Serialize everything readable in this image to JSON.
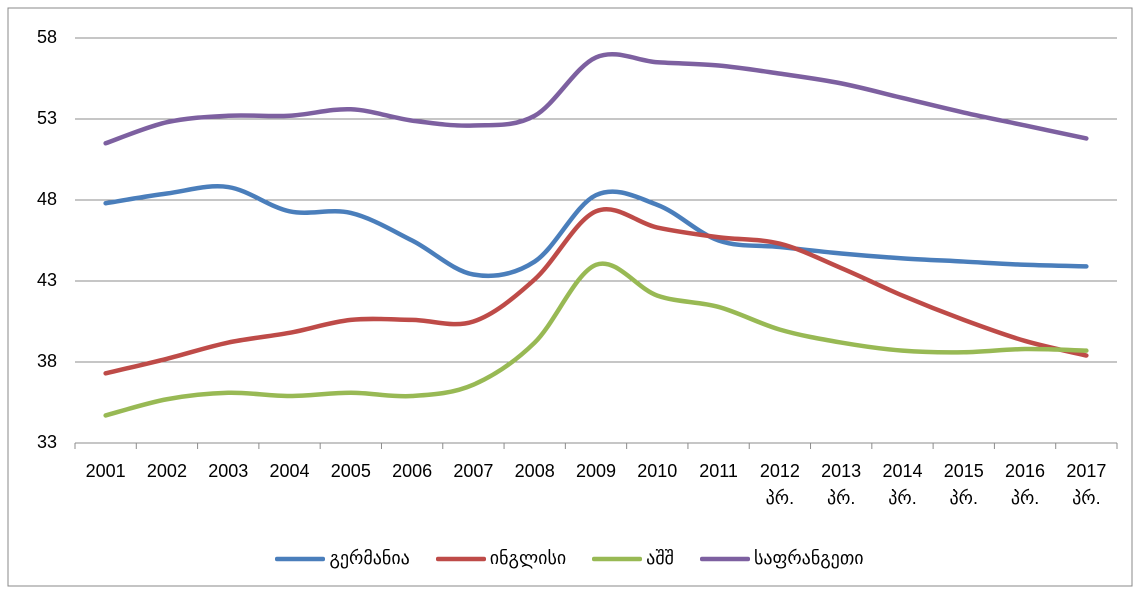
{
  "chart_data": {
    "type": "line",
    "categories": [
      "2001",
      "2002",
      "2003",
      "2004",
      "2005",
      "2006",
      "2007",
      "2008",
      "2009",
      "2010",
      "2011",
      "2012 პრ.",
      "2013 პრ.",
      "2014 პრ.",
      "2015 პრ.",
      "2016 პრ.",
      "2017 პრ."
    ],
    "series": [
      {
        "name": "გერმანია",
        "color": "#4a7ebb",
        "values": [
          47.8,
          48.4,
          48.8,
          47.3,
          47.2,
          45.5,
          43.4,
          44.2,
          48.3,
          47.7,
          45.5,
          45.1,
          44.7,
          44.4,
          44.2,
          44.0,
          43.9
        ]
      },
      {
        "name": "ინგლისი",
        "color": "#be4b48",
        "values": [
          37.3,
          38.2,
          39.2,
          39.8,
          40.6,
          40.6,
          40.5,
          43.1,
          47.3,
          46.3,
          45.7,
          45.3,
          43.8,
          42.1,
          40.6,
          39.3,
          38.4
        ]
      },
      {
        "name": "აშშ",
        "color": "#98b954",
        "values": [
          34.7,
          35.7,
          36.1,
          35.9,
          36.1,
          35.9,
          36.6,
          39.2,
          44.0,
          42.1,
          41.4,
          40.0,
          39.2,
          38.7,
          38.6,
          38.8,
          38.7
        ]
      },
      {
        "name": "საფრანგეთი",
        "color": "#7d60a0",
        "values": [
          51.5,
          52.8,
          53.2,
          53.2,
          53.6,
          52.9,
          52.6,
          53.2,
          56.8,
          56.5,
          56.3,
          55.8,
          55.2,
          54.3,
          53.4,
          52.6,
          51.8
        ]
      }
    ],
    "ylim": [
      33,
      58
    ],
    "yticks": [
      33,
      38,
      43,
      48,
      53,
      58
    ],
    "grid": true,
    "legend": "bottom"
  }
}
